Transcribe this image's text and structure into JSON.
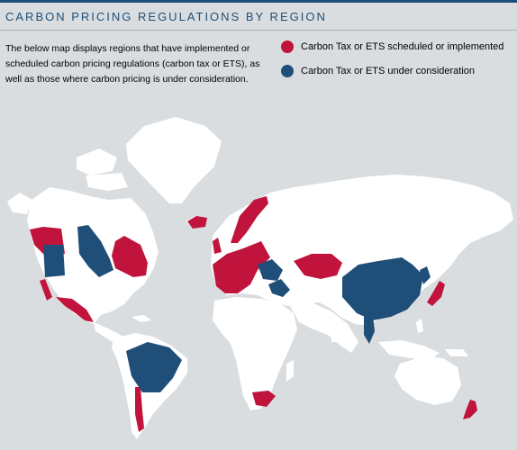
{
  "header": {
    "title": "CARBON PRICING REGULATIONS BY REGION",
    "description": "The below map displays regions that have implemented or scheduled carbon pricing regulations (carbon tax or ETS), as well as those where carbon pricing is under consideration."
  },
  "legend": [
    {
      "label": "Carbon Tax or ETS scheduled or implemented",
      "color": "#c0143c"
    },
    {
      "label": "Carbon Tax or ETS under consideration",
      "color": "#1f4e79"
    }
  ],
  "colors": {
    "background": "#d9dde0",
    "land": "#ffffff",
    "implemented": "#c0143c",
    "consideration": "#1f4e79",
    "accent": "#1e4f78"
  }
}
